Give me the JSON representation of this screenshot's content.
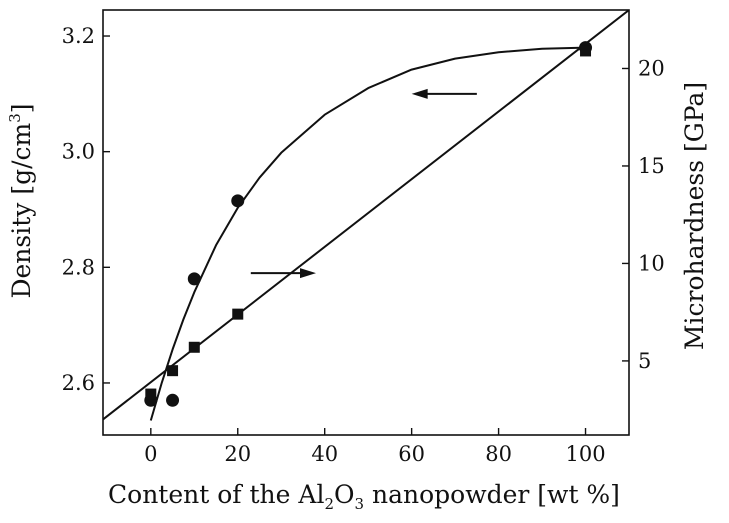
{
  "chart_data": {
    "type": "scatter",
    "title": "",
    "xlabel": "Content of the Al2O3 nanopowder [wt %]",
    "xlabel_parts": {
      "pre": "Content of the Al",
      "sub1": "2",
      "mid": "O",
      "sub2": "3",
      "post": " nanopowder [wt %]"
    },
    "ylabel": "Density [g/cm3]",
    "ylabel_parts": {
      "pre": "Density [g/cm",
      "sup": "3",
      "post": "]"
    },
    "y2label": "Microhardness [GPa]",
    "xlim": [
      -11,
      110
    ],
    "ylim": [
      2.51,
      3.245
    ],
    "y2lim": [
      1.2,
      23.0
    ],
    "x_ticks": [
      0,
      20,
      40,
      60,
      80,
      100
    ],
    "y_ticks": [
      2.6,
      2.8,
      3.0,
      3.2
    ],
    "y2_ticks": [
      5,
      10,
      15,
      20
    ],
    "grid": false,
    "series": [
      {
        "marker": "circle",
        "axis": "left",
        "x": [
          0,
          5,
          10,
          20,
          100
        ],
        "y": [
          2.57,
          2.57,
          2.78,
          2.915,
          3.18
        ]
      },
      {
        "marker": "square",
        "axis": "right",
        "x": [
          0,
          5,
          10,
          20,
          100
        ],
        "y": [
          3.3,
          4.5,
          5.7,
          7.4,
          20.9
        ]
      }
    ],
    "fits": [
      {
        "axis": "left",
        "kind": "curve",
        "x": [
          0,
          2.5,
          5,
          7.5,
          10,
          15,
          20,
          25,
          30,
          40,
          50,
          60,
          70,
          80,
          90,
          100
        ],
        "y": [
          2.535,
          2.6,
          2.658,
          2.71,
          2.757,
          2.838,
          2.903,
          2.955,
          2.998,
          3.064,
          3.11,
          3.142,
          3.161,
          3.172,
          3.178,
          3.18
        ]
      },
      {
        "axis": "right",
        "kind": "line",
        "x": [
          -11,
          110
        ],
        "y": [
          2.0,
          23.0
        ]
      }
    ],
    "annotations": [
      {
        "kind": "arrow",
        "direction": "left",
        "points_to": "left-axis",
        "x_from": 75,
        "x_to": 60,
        "y": 3.1
      },
      {
        "kind": "arrow",
        "direction": "right",
        "points_to": "right-axis",
        "x_from": 23,
        "x_to": 38,
        "y": 2.79
      }
    ]
  }
}
